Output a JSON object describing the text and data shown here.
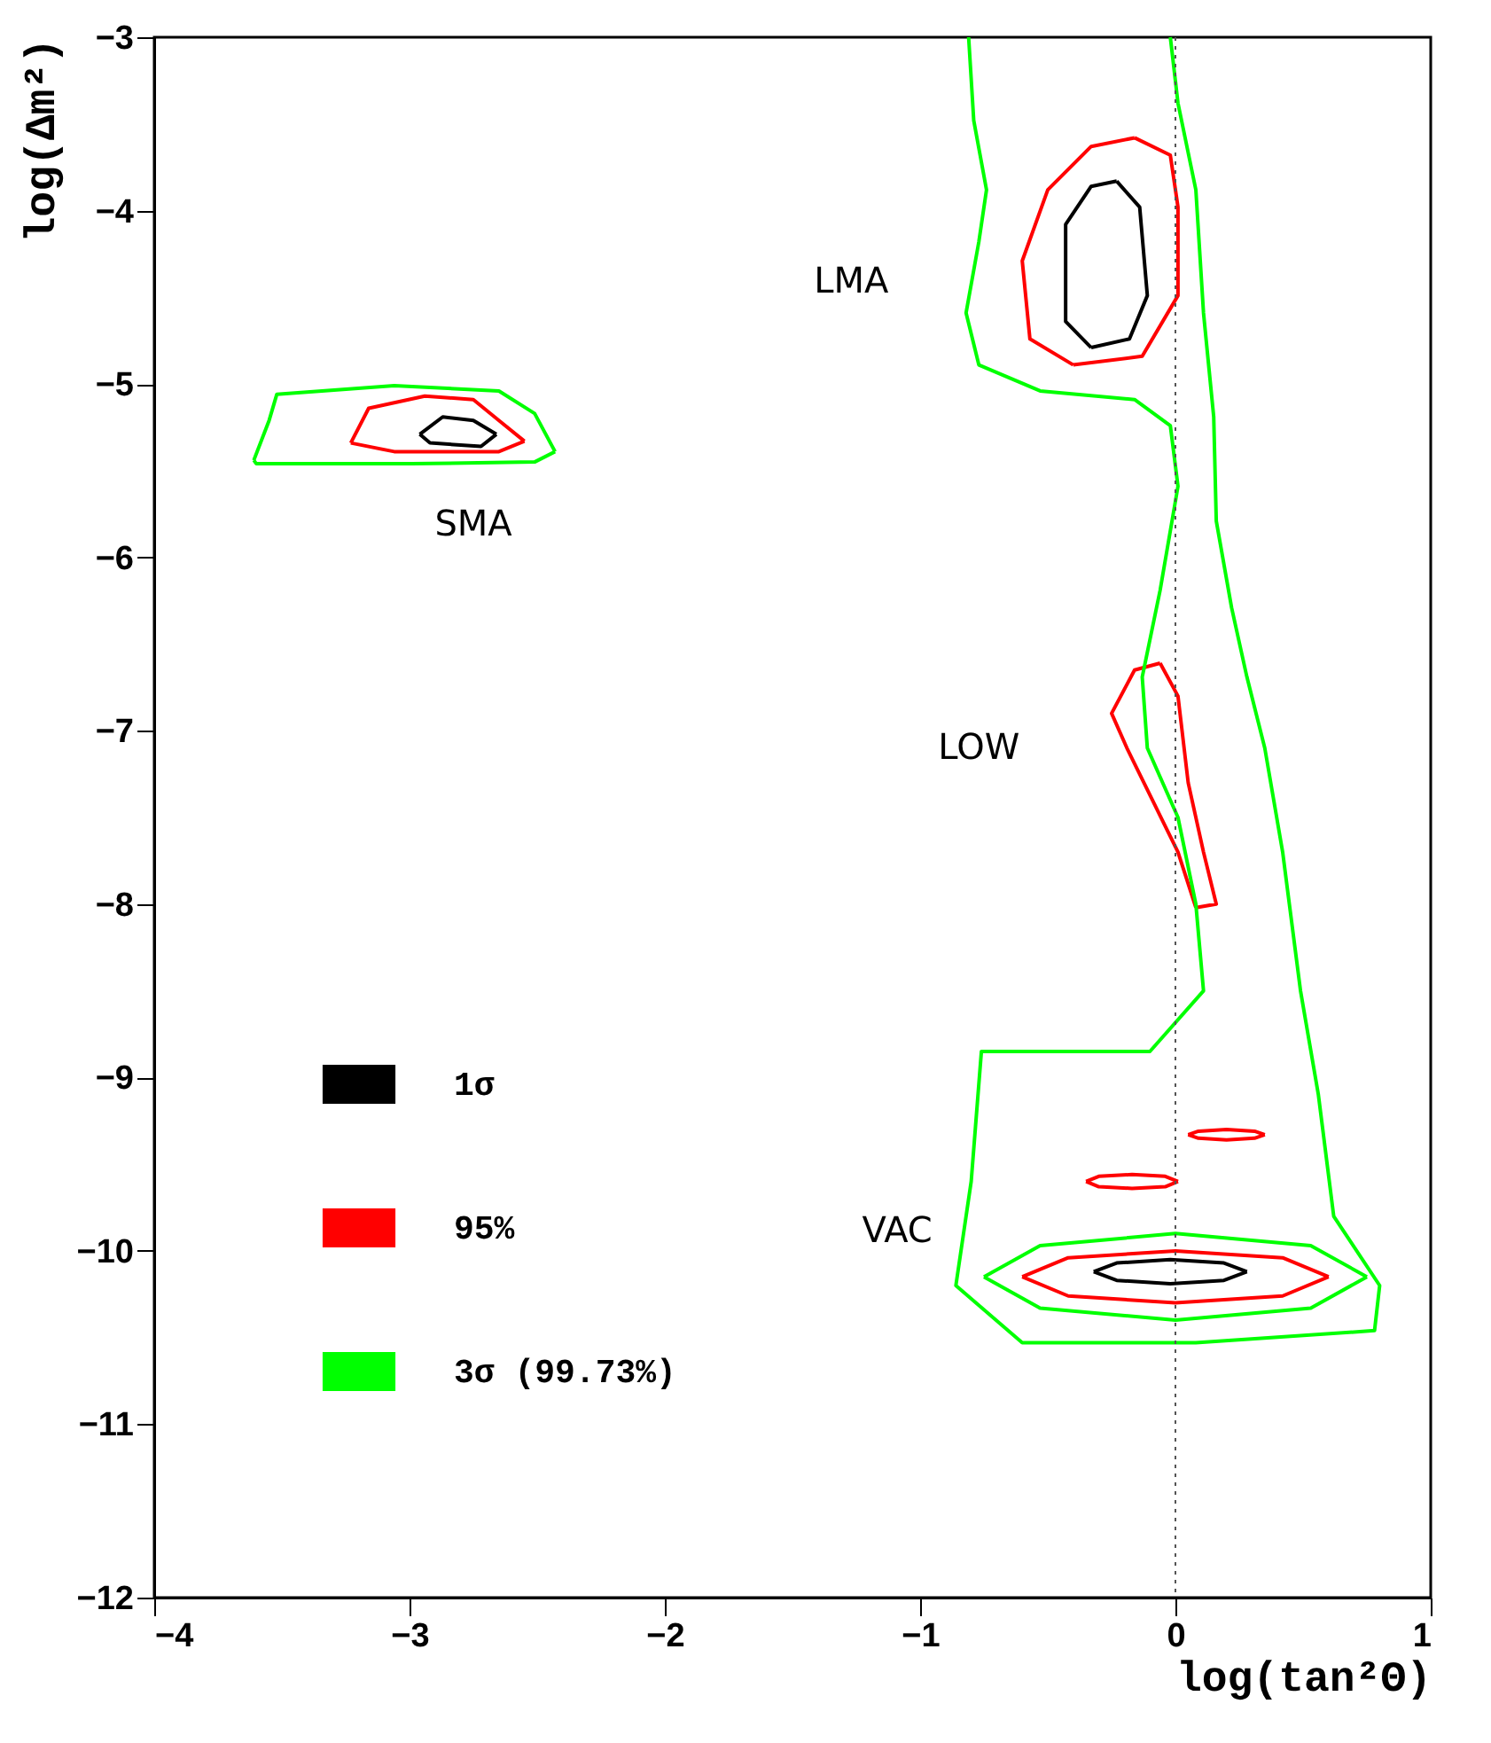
{
  "chart_data": {
    "type": "line",
    "xlabel": "log(tan²Θ)",
    "ylabel": "log(Δm²)",
    "xlim": [
      -4,
      1
    ],
    "xticks": [
      -4,
      -3,
      -2,
      -1,
      0,
      1
    ],
    "ylim": [
      -12,
      -3
    ],
    "yticks": [
      -12,
      -11,
      -10,
      -9,
      -8,
      -7,
      -6,
      -5,
      -4,
      -3
    ],
    "grid": false,
    "legend": "bottom left",
    "marker": "none",
    "line_style": "solid",
    "series": [
      {
        "name": "1σ",
        "color": "#000000",
        "x": [
          -2.96,
          -2.87,
          -2.75,
          -2.66
        ],
        "values": [
          -5.29,
          -5.19,
          -5.21,
          -5.29
        ]
      },
      {
        "color": "#000000",
        "x": [
          -2.96,
          -2.92,
          -2.72,
          -2.66
        ],
        "values": [
          -5.29,
          -5.34,
          -5.36,
          -5.29
        ]
      },
      {
        "color": "#000000",
        "x": [
          -0.23,
          -0.33,
          -0.43,
          -0.43,
          -0.33
        ],
        "values": [
          -3.83,
          -3.86,
          -4.08,
          -4.64,
          -4.79
        ]
      },
      {
        "color": "#000000",
        "x": [
          -0.23,
          -0.14,
          -0.11,
          -0.18,
          -0.33
        ],
        "values": [
          -3.83,
          -3.98,
          -4.49,
          -4.74,
          -4.79
        ]
      },
      {
        "color": "#000000",
        "x": [
          -0.32,
          -0.23,
          -0.02,
          0.19,
          0.28
        ],
        "values": [
          -10.12,
          -10.07,
          -10.05,
          -10.07,
          -10.12
        ]
      },
      {
        "color": "#000000",
        "x": [
          -0.32,
          -0.23,
          -0.02,
          0.19,
          0.28
        ],
        "values": [
          -10.12,
          -10.17,
          -10.19,
          -10.17,
          -10.12
        ]
      },
      {
        "name": "95%",
        "color": "#ff0000",
        "x": [
          -3.23,
          -3.16,
          -2.94,
          -2.75,
          -2.65,
          -2.55
        ],
        "values": [
          -5.34,
          -5.14,
          -5.07,
          -5.09,
          -5.21,
          -5.33
        ]
      },
      {
        "color": "#ff0000",
        "x": [
          -3.23,
          -3.06,
          -2.65,
          -2.55
        ],
        "values": [
          -5.34,
          -5.39,
          -5.39,
          -5.33
        ]
      },
      {
        "color": "#ff0000",
        "x": [
          -0.16,
          -0.33,
          -0.5,
          -0.6,
          -0.57,
          -0.4
        ],
        "values": [
          -3.58,
          -3.63,
          -3.88,
          -4.29,
          -4.74,
          -4.89
        ]
      },
      {
        "color": "#ff0000",
        "x": [
          -0.16,
          -0.02,
          0.01,
          0.01,
          -0.13,
          -0.4
        ],
        "values": [
          -3.58,
          -3.68,
          -3.98,
          -4.49,
          -4.84,
          -4.89
        ]
      },
      {
        "color": "#ff0000",
        "x": [
          -0.06,
          -0.16,
          -0.25,
          -0.19,
          0.01,
          0.08
        ],
        "values": [
          -6.61,
          -6.65,
          -6.9,
          -7.1,
          -7.7,
          -8.02
        ]
      },
      {
        "color": "#ff0000",
        "x": [
          -0.06,
          0.01,
          0.05,
          0.11,
          0.16,
          0.08
        ],
        "values": [
          -6.61,
          -6.8,
          -7.3,
          -7.7,
          -8,
          -8.02
        ]
      },
      {
        "color": "#ff0000",
        "x": [
          -0.35,
          -0.3,
          -0.17,
          -0.04,
          0.01
        ],
        "values": [
          -9.6,
          -9.57,
          -9.56,
          -9.57,
          -9.6
        ]
      },
      {
        "color": "#ff0000",
        "x": [
          -0.35,
          -0.3,
          -0.17,
          -0.04,
          0.01
        ],
        "values": [
          -9.6,
          -9.63,
          -9.64,
          -9.63,
          -9.6
        ]
      },
      {
        "color": "#ff0000",
        "x": [
          0.05,
          0.09,
          0.2,
          0.31,
          0.35
        ],
        "values": [
          -9.33,
          -9.31,
          -9.3,
          -9.31,
          -9.33
        ]
      },
      {
        "color": "#ff0000",
        "x": [
          0.05,
          0.09,
          0.2,
          0.31,
          0.35
        ],
        "values": [
          -9.33,
          -9.35,
          -9.36,
          -9.35,
          -9.33
        ]
      },
      {
        "color": "#ff0000",
        "x": [
          -0.6,
          -0.42,
          0,
          0.42,
          0.6
        ],
        "values": [
          -10.15,
          -10.04,
          -10,
          -10.04,
          -10.15
        ]
      },
      {
        "color": "#ff0000",
        "x": [
          -0.6,
          -0.42,
          0,
          0.42,
          0.6
        ],
        "values": [
          -10.15,
          -10.26,
          -10.3,
          -10.26,
          -10.15
        ]
      },
      {
        "name": "3σ (99.73%)",
        "color": "#00ff00",
        "x": [
          -3.61,
          -3.55,
          -3.52,
          -3.06,
          -2.65,
          -2.51,
          -2.43
        ],
        "values": [
          -5.44,
          -5.21,
          -5.06,
          -5.01,
          -5.04,
          -5.17,
          -5.39
        ]
      },
      {
        "color": "#00ff00",
        "x": [
          -3.61,
          -3.6,
          -2.99,
          -2.51,
          -2.43
        ],
        "values": [
          -5.44,
          -5.46,
          -5.46,
          -5.45,
          -5.39
        ]
      },
      {
        "color": "#00ff00",
        "x": [
          -0.81,
          -0.79,
          -0.74,
          -0.77,
          -0.82,
          -0.77,
          -0.53,
          -0.16,
          -0.02,
          0.01,
          -0.06,
          -0.13,
          -0.11,
          0.01,
          0.08,
          0.11,
          -0.1,
          -0.52,
          -0.76,
          -0.8,
          -0.86,
          -0.6,
          0.08,
          0.78,
          0.8,
          0.62,
          0.56,
          0.49,
          0.42,
          0.35,
          0.28,
          0.22,
          0.16,
          0.15,
          0.11,
          0.08,
          0.01,
          -0.02
        ],
        "values": [
          -3,
          -3.48,
          -3.88,
          -4.18,
          -4.59,
          -4.89,
          -5.04,
          -5.09,
          -5.24,
          -5.59,
          -6.19,
          -6.69,
          -7.1,
          -7.5,
          -8,
          -8.5,
          -8.85,
          -8.85,
          -8.85,
          -9.6,
          -10.2,
          -10.53,
          -10.53,
          -10.46,
          -10.2,
          -9.8,
          -9.1,
          -8.5,
          -7.7,
          -7.1,
          -6.69,
          -6.29,
          -5.79,
          -5.19,
          -4.59,
          -3.88,
          -3.38,
          -3
        ]
      },
      {
        "color": "#00ff00",
        "x": [
          -0.75,
          -0.53,
          0,
          0.53,
          0.75
        ],
        "values": [
          -10.15,
          -9.97,
          -9.9,
          -9.97,
          -10.15
        ]
      },
      {
        "color": "#00ff00",
        "x": [
          -0.75,
          -0.53,
          0,
          0.53,
          0.75
        ],
        "values": [
          -10.15,
          -10.33,
          -10.4,
          -10.33,
          -10.15
        ]
      }
    ],
    "ref_lines": [
      {
        "axis": "x",
        "value": 0,
        "color": "#555555",
        "line_style": "dotted"
      }
    ],
    "annotations": [
      "LMA",
      "SMA",
      "LOW",
      "VAC"
    ]
  }
}
